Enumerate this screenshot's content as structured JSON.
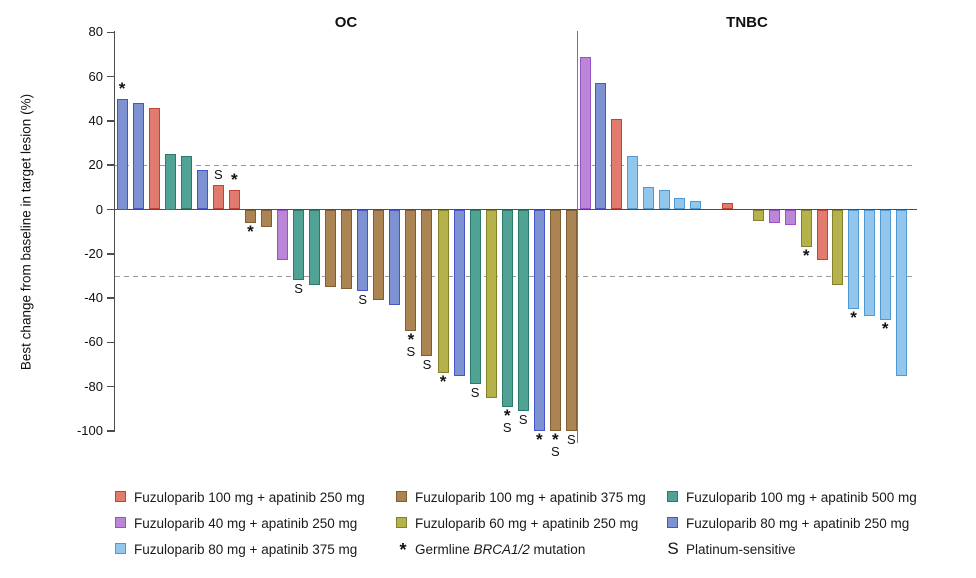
{
  "figure": {
    "y_axis_label": "Best change from baseline in target lesion (%)",
    "group_titles": [
      "OC",
      "TNBC"
    ],
    "y_ticks": [
      80,
      60,
      40,
      20,
      0,
      -20,
      -40,
      -60,
      -80,
      -100
    ],
    "reference_lines_pct": [
      20,
      -30
    ]
  },
  "doses": {
    "fuz100_apa250": {
      "label": "Fuzuloparib 100 mg + apatinib 250 mg",
      "fill": "#E07B6E",
      "border": "#C24434"
    },
    "fuz100_apa375": {
      "label": "Fuzuloparib 100 mg + apatinib 375 mg",
      "fill": "#AC8352",
      "border": "#7E5F33"
    },
    "fuz100_apa500": {
      "label": "Fuzuloparib 100 mg + apatinib 500 mg",
      "fill": "#4FA294",
      "border": "#2C7A6B"
    },
    "fuz40_apa250": {
      "label": "Fuzuloparib 40 mg + apatinib 250 mg",
      "fill": "#BC86D8",
      "border": "#9A50C8"
    },
    "fuz60_apa250": {
      "label": "Fuzuloparib 60 mg + apatinib 250 mg",
      "fill": "#B5B24B",
      "border": "#83812B"
    },
    "fuz80_apa250": {
      "label": "Fuzuloparib 80 mg + apatinib 250 mg",
      "fill": "#7E92D2",
      "border": "#4756C6"
    },
    "fuz80_apa375": {
      "label": "Fuzuloparib 80 mg + apatinib 375 mg",
      "fill": "#93C6EC",
      "border": "#4F9AD2"
    }
  },
  "symbols": {
    "asterisk": {
      "glyph": "*",
      "label_prefix": "Germline ",
      "label_italic": "BRCA1/2",
      "label_suffix": " mutation"
    },
    "platinum": {
      "glyph": "S",
      "label": "Platinum-sensitive"
    }
  },
  "chart_data": {
    "type": "bar",
    "title": "",
    "ylabel": "Best change from baseline in target lesion (%)",
    "ylim": [
      -105,
      80
    ],
    "grid": "dashed reference lines at +20 and -30",
    "groups": [
      {
        "name": "OC",
        "bars": [
          {
            "value": 50,
            "dose": "fuz80_apa250",
            "marks": [
              "*"
            ]
          },
          {
            "value": 48,
            "dose": "fuz80_apa250",
            "marks": []
          },
          {
            "value": 46,
            "dose": "fuz100_apa250",
            "marks": []
          },
          {
            "value": 25,
            "dose": "fuz100_apa500",
            "marks": []
          },
          {
            "value": 24,
            "dose": "fuz100_apa500",
            "marks": []
          },
          {
            "value": 18,
            "dose": "fuz80_apa250",
            "marks": []
          },
          {
            "value": 11,
            "dose": "fuz100_apa250",
            "marks": [
              "S"
            ]
          },
          {
            "value": 9,
            "dose": "fuz100_apa250",
            "marks": [
              "*"
            ]
          },
          {
            "value": -6,
            "dose": "fuz100_apa375",
            "marks": [
              "*"
            ]
          },
          {
            "value": -8,
            "dose": "fuz100_apa375",
            "marks": []
          },
          {
            "value": -23,
            "dose": "fuz40_apa250",
            "marks": []
          },
          {
            "value": -32,
            "dose": "fuz100_apa500",
            "marks": [
              "S"
            ]
          },
          {
            "value": -34,
            "dose": "fuz100_apa500",
            "marks": []
          },
          {
            "value": -35,
            "dose": "fuz100_apa375",
            "marks": []
          },
          {
            "value": -36,
            "dose": "fuz100_apa375",
            "marks": []
          },
          {
            "value": -37,
            "dose": "fuz80_apa250",
            "marks": [
              "S"
            ]
          },
          {
            "value": -41,
            "dose": "fuz100_apa375",
            "marks": []
          },
          {
            "value": -43,
            "dose": "fuz80_apa250",
            "marks": []
          },
          {
            "value": -55,
            "dose": "fuz100_apa375",
            "marks": [
              "*",
              "S"
            ]
          },
          {
            "value": -66,
            "dose": "fuz100_apa375",
            "marks": [
              "S"
            ]
          },
          {
            "value": -74,
            "dose": "fuz60_apa250",
            "marks": [
              "*"
            ]
          },
          {
            "value": -75,
            "dose": "fuz80_apa250",
            "marks": []
          },
          {
            "value": -79,
            "dose": "fuz100_apa500",
            "marks": [
              "S"
            ]
          },
          {
            "value": -85,
            "dose": "fuz60_apa250",
            "marks": []
          },
          {
            "value": -89,
            "dose": "fuz100_apa500",
            "marks": [
              "*",
              "S"
            ]
          },
          {
            "value": -91,
            "dose": "fuz100_apa500",
            "marks": [
              "S"
            ]
          },
          {
            "value": -100,
            "dose": "fuz80_apa250",
            "marks": [
              "*"
            ]
          },
          {
            "value": -100,
            "dose": "fuz100_apa375",
            "marks": [
              "*",
              "S"
            ]
          },
          {
            "value": -100,
            "dose": "fuz100_apa375",
            "marks": [
              "S"
            ]
          }
        ]
      },
      {
        "name": "TNBC",
        "bars": [
          {
            "value": 69,
            "dose": "fuz40_apa250",
            "marks": []
          },
          {
            "value": 57,
            "dose": "fuz80_apa250",
            "marks": []
          },
          {
            "value": 41,
            "dose": "fuz100_apa250",
            "marks": []
          },
          {
            "value": 24,
            "dose": "fuz80_apa375",
            "marks": []
          },
          {
            "value": 10,
            "dose": "fuz80_apa375",
            "marks": []
          },
          {
            "value": 9,
            "dose": "fuz80_apa375",
            "marks": []
          },
          {
            "value": 5,
            "dose": "fuz80_apa375",
            "marks": []
          },
          {
            "value": 4,
            "dose": "fuz80_apa375",
            "marks": []
          },
          {
            "value": 0,
            "dose": null,
            "marks": []
          },
          {
            "value": 3,
            "dose": "fuz100_apa250",
            "marks": []
          },
          {
            "value": 0,
            "dose": null,
            "marks": []
          },
          {
            "value": -5,
            "dose": "fuz60_apa250",
            "marks": []
          },
          {
            "value": -6,
            "dose": "fuz40_apa250",
            "marks": []
          },
          {
            "value": -7,
            "dose": "fuz40_apa250",
            "marks": []
          },
          {
            "value": -17,
            "dose": "fuz60_apa250",
            "marks": [
              "*"
            ]
          },
          {
            "value": -23,
            "dose": "fuz100_apa250",
            "marks": []
          },
          {
            "value": -34,
            "dose": "fuz60_apa250",
            "marks": []
          },
          {
            "value": -45,
            "dose": "fuz80_apa375",
            "marks": [
              "*"
            ]
          },
          {
            "value": -48,
            "dose": "fuz80_apa375",
            "marks": []
          },
          {
            "value": -50,
            "dose": "fuz80_apa375",
            "marks": [
              "*"
            ]
          },
          {
            "value": -75,
            "dose": "fuz80_apa375",
            "marks": []
          }
        ]
      }
    ]
  },
  "legend": {
    "columns": [
      [
        {
          "dose": "fuz100_apa250"
        },
        {
          "dose": "fuz40_apa250"
        },
        {
          "dose": "fuz80_apa375"
        }
      ],
      [
        {
          "dose": "fuz100_apa375"
        },
        {
          "dose": "fuz60_apa250"
        },
        {
          "symbol": "asterisk"
        }
      ],
      [
        {
          "dose": "fuz100_apa500"
        },
        {
          "dose": "fuz80_apa250"
        },
        {
          "symbol": "platinum"
        }
      ]
    ]
  }
}
